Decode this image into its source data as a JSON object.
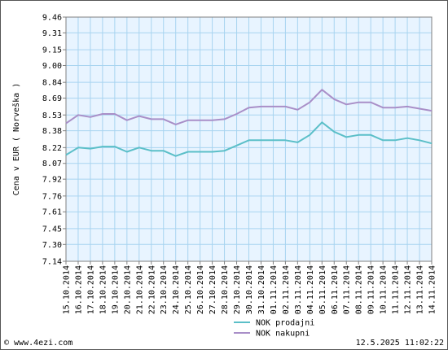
{
  "chart_data": {
    "type": "line",
    "title": "",
    "xlabel": "",
    "ylabel": "Cena  v  EUR  ( Norveška )",
    "yticks": [
      7.14,
      7.3,
      7.45,
      7.61,
      7.76,
      7.92,
      8.07,
      8.22,
      8.38,
      8.53,
      8.69,
      8.84,
      9.0,
      9.15,
      9.31,
      9.46
    ],
    "ylim": [
      7.14,
      9.46
    ],
    "grid": true,
    "legend_position": "bottom",
    "categories": [
      "15.10.2014",
      "16.10.2014",
      "17.10.2014",
      "18.10.2014",
      "19.10.2014",
      "20.10.2014",
      "21.10.2014",
      "22.10.2014",
      "23.10.2014",
      "24.10.2014",
      "25.10.2014",
      "26.10.2014",
      "27.10.2014",
      "28.10.2014",
      "29.10.2014",
      "30.10.2014",
      "31.10.2014",
      "01.11.2014",
      "02.11.2014",
      "03.11.2014",
      "04.11.2014",
      "05.11.2014",
      "06.11.2014",
      "07.11.2014",
      "08.11.2014",
      "09.11.2014",
      "10.11.2014",
      "11.11.2014",
      "12.11.2014",
      "13.11.2014",
      "14.11.2014"
    ],
    "series": [
      {
        "name": "NOK prodajni",
        "color": "#5bbfc8",
        "values": [
          8.15,
          8.22,
          8.21,
          8.23,
          8.23,
          8.18,
          8.22,
          8.19,
          8.19,
          8.14,
          8.18,
          8.18,
          8.18,
          8.19,
          8.24,
          8.29,
          8.29,
          8.29,
          8.29,
          8.27,
          8.34,
          8.46,
          8.37,
          8.32,
          8.34,
          8.34,
          8.29,
          8.29,
          8.31,
          8.29,
          8.26
        ]
      },
      {
        "name": "NOK nakupni",
        "color": "#a98fc8",
        "values": [
          8.45,
          8.53,
          8.51,
          8.54,
          8.54,
          8.48,
          8.52,
          8.49,
          8.49,
          8.44,
          8.48,
          8.48,
          8.48,
          8.49,
          8.54,
          8.6,
          8.61,
          8.61,
          8.61,
          8.58,
          8.65,
          8.77,
          8.68,
          8.63,
          8.65,
          8.65,
          8.6,
          8.6,
          8.61,
          8.59,
          8.57
        ]
      }
    ],
    "background_color": "#e8f4ff",
    "grid_color": "#a8d4f0"
  },
  "footer": {
    "source": "© www.4ezi.com",
    "timestamp": "12.5.2025 11:02:22"
  }
}
